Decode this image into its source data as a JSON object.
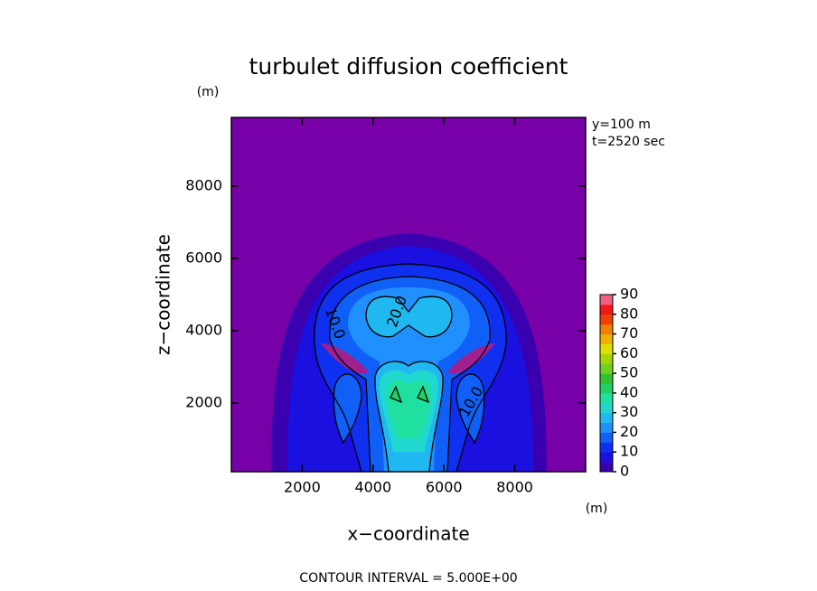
{
  "chart_data": {
    "type": "contour",
    "title": "turbulet diffusion coefficient",
    "x_label": "x−coordinate",
    "y_label": "z−coordinate",
    "x_unit": "(m)",
    "y_unit": "(m)",
    "info": [
      "y=100 m",
      "t=2520 sec"
    ],
    "footer": "CONTOUR INTERVAL = 5.000E+00",
    "xlim": [
      0,
      10000
    ],
    "xticks": [
      2000,
      4000,
      6000,
      8000
    ],
    "ylim": [
      100,
      9900
    ],
    "yticks": [
      2000,
      4000,
      6000,
      8000
    ],
    "background_color": "#7800a8",
    "contour_labels": [
      {
        "value": 20,
        "label": "20.0"
      },
      {
        "value": 10,
        "label": "10.0"
      },
      {
        "value": 10,
        "label": "10.0"
      }
    ],
    "colorbar": {
      "lim": [
        0,
        90
      ],
      "ticks": [
        0,
        10,
        20,
        30,
        40,
        50,
        60,
        70,
        80,
        90
      ],
      "colors": [
        "#3a00b0",
        "#1a10e0",
        "#1030f0",
        "#1060f8",
        "#2090ff",
        "#20b8f0",
        "#20d8d0",
        "#20e0a0",
        "#20d060",
        "#30c030",
        "#70d020",
        "#a0d800",
        "#e0e000",
        "#f0b000",
        "#f08000",
        "#f04000",
        "#f01818",
        "#f06080"
      ]
    }
  }
}
